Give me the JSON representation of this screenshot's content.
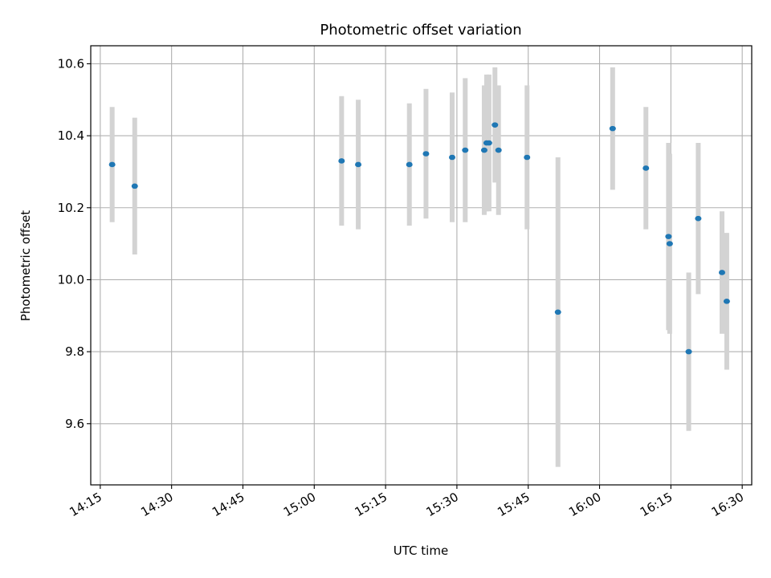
{
  "chart_data": {
    "type": "scatter",
    "title": "Photometric offset variation",
    "xlabel": "UTC time",
    "ylabel": "Photometric offset",
    "x_ticks": [
      "14:15",
      "14:30",
      "14:45",
      "15:00",
      "15:15",
      "15:30",
      "15:45",
      "16:00",
      "16:15",
      "16:30"
    ],
    "y_ticks": [
      "9.6",
      "9.8",
      "10.0",
      "10.2",
      "10.4",
      "10.6"
    ],
    "xlim": [
      "14:13",
      "16:32"
    ],
    "ylim": [
      9.43,
      10.65
    ],
    "grid": true,
    "marker_color": "#1f77b4",
    "errorbar_color": "#d3d3d3",
    "points": [
      {
        "x": "14:17:30",
        "y": 10.32,
        "err": 0.16
      },
      {
        "x": "14:22:15",
        "y": 10.26,
        "err": 0.19
      },
      {
        "x": "15:05:45",
        "y": 10.33,
        "err": 0.18
      },
      {
        "x": "15:09:15",
        "y": 10.32,
        "err": 0.18
      },
      {
        "x": "15:20:00",
        "y": 10.32,
        "err": 0.17
      },
      {
        "x": "15:23:30",
        "y": 10.35,
        "err": 0.18
      },
      {
        "x": "15:29:00",
        "y": 10.34,
        "err": 0.18
      },
      {
        "x": "15:31:45",
        "y": 10.36,
        "err": 0.2
      },
      {
        "x": "15:35:45",
        "y": 10.36,
        "err": 0.18
      },
      {
        "x": "15:36:15",
        "y": 10.38,
        "err": 0.19
      },
      {
        "x": "15:36:45",
        "y": 10.38,
        "err": 0.19
      },
      {
        "x": "15:38:00",
        "y": 10.43,
        "err": 0.16
      },
      {
        "x": "15:38:45",
        "y": 10.36,
        "err": 0.18
      },
      {
        "x": "15:44:45",
        "y": 10.34,
        "err": 0.2
      },
      {
        "x": "15:51:15",
        "y": 9.91,
        "err": 0.43
      },
      {
        "x": "16:02:45",
        "y": 10.42,
        "err": 0.17
      },
      {
        "x": "16:09:45",
        "y": 10.31,
        "err": 0.17
      },
      {
        "x": "16:14:30",
        "y": 10.12,
        "err": 0.26
      },
      {
        "x": "16:14:45",
        "y": 10.1,
        "err": 0.25
      },
      {
        "x": "16:18:45",
        "y": 9.8,
        "err": 0.22
      },
      {
        "x": "16:20:45",
        "y": 10.17,
        "err": 0.21
      },
      {
        "x": "16:25:45",
        "y": 10.02,
        "err": 0.17
      },
      {
        "x": "16:26:45",
        "y": 9.94,
        "err": 0.19
      }
    ]
  }
}
